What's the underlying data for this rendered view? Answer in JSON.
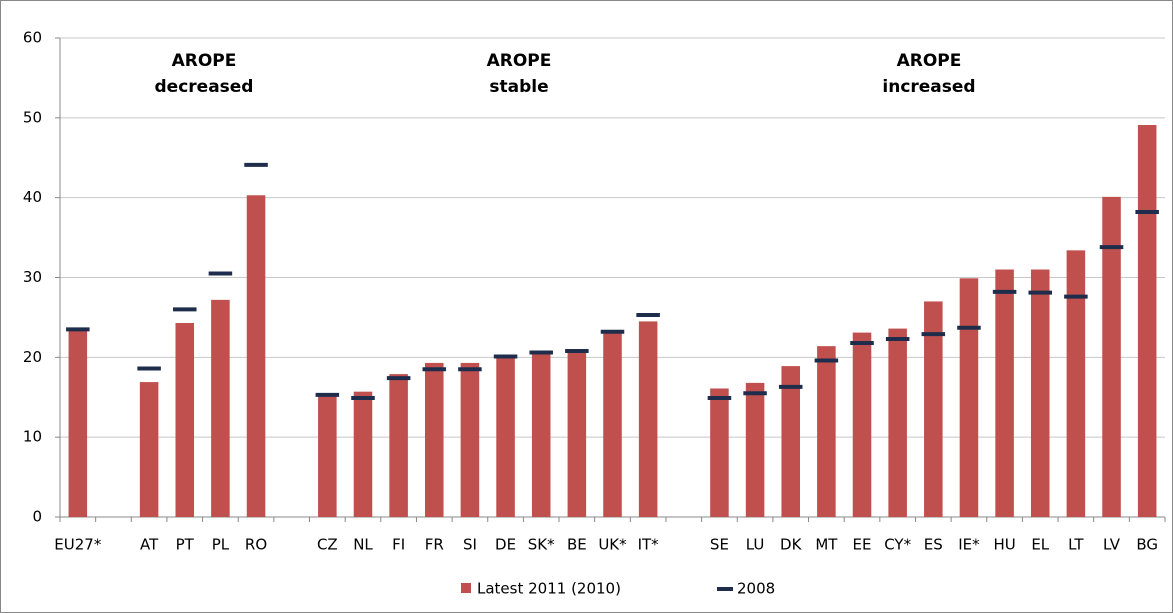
{
  "chart_data": {
    "type": "bar",
    "categories": [
      "EU27*",
      null,
      "AT",
      "PT",
      "PL",
      "RO",
      null,
      "CZ",
      "NL",
      "FI",
      "FR",
      "SI",
      "DE",
      "SK*",
      "BE",
      "UK*",
      "IT*",
      null,
      "SE",
      "LU",
      "DK",
      "MT",
      "EE",
      "CY*",
      "ES",
      "IE*",
      "HU",
      "EL",
      "LT",
      "LV",
      "BG"
    ],
    "series": [
      {
        "name": "Latest 2011 (2010)",
        "color": "#c0504d",
        "values": [
          23.6,
          null,
          16.9,
          24.3,
          27.2,
          40.3,
          null,
          15.3,
          15.7,
          17.9,
          19.3,
          19.3,
          19.9,
          20.6,
          21.0,
          23.1,
          24.5,
          null,
          16.1,
          16.8,
          18.9,
          21.4,
          23.1,
          23.6,
          27.0,
          29.9,
          31.0,
          31.0,
          33.4,
          40.1,
          49.1
        ]
      },
      {
        "name": "2008",
        "color": "#1f2d4d",
        "values": [
          23.5,
          null,
          18.6,
          26.0,
          30.5,
          44.1,
          null,
          15.3,
          14.9,
          17.4,
          18.5,
          18.5,
          20.1,
          20.6,
          20.8,
          23.2,
          25.3,
          null,
          14.9,
          15.5,
          16.3,
          19.6,
          21.8,
          22.3,
          22.9,
          23.7,
          28.2,
          28.1,
          27.6,
          33.8,
          38.2
        ]
      }
    ],
    "annotations": [
      [
        "AROPE",
        "decreased"
      ],
      [
        "AROPE",
        "stable"
      ],
      [
        "AROPE",
        "increased"
      ]
    ],
    "ylim": [
      0,
      60
    ],
    "yticks": [
      0,
      10,
      20,
      30,
      40,
      50,
      60
    ],
    "grid": true,
    "legend": "bottom"
  }
}
